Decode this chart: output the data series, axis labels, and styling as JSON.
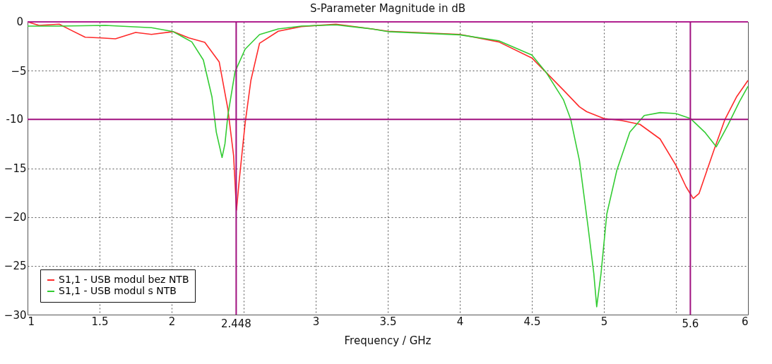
{
  "chart_data": {
    "type": "line",
    "title": "S-Parameter Magnitude in dB",
    "xlabel": "Frequency / GHz",
    "xlim": [
      1,
      6
    ],
    "ylim": [
      -30,
      0
    ],
    "xticks": [
      1,
      1.5,
      2,
      {
        "value": 2.5,
        "label": null
      },
      3,
      3.5,
      4,
      4.5,
      5,
      {
        "value": 5.5,
        "label": null
      },
      6
    ],
    "yticks": [
      {
        "value": 0,
        "label": null
      },
      -5,
      {
        "value": -10,
        "label": null
      },
      -15,
      -20,
      -25,
      -30
    ],
    "grid": true,
    "legend": "bottom left",
    "marker": "none",
    "line_style": "solid",
    "ref_lines": [
      {
        "axis": "y",
        "value": 0,
        "label": "0",
        "color": "#b0208f"
      },
      {
        "axis": "y",
        "value": -10,
        "label": "-10",
        "color": "#a0107f"
      },
      {
        "axis": "x",
        "value": 2.448,
        "label": "2.448",
        "color": "#a0107f"
      },
      {
        "axis": "x",
        "value": 5.6,
        "label": "5.6",
        "color": "#a0107f"
      }
    ],
    "series": [
      {
        "name": "S1,1 - USB modul bez NTB",
        "color": "#ff2a2a",
        "x": [
          1,
          1.08,
          1.22,
          1.3,
          1.4,
          1.51,
          1.61,
          1.75,
          1.86,
          2.01,
          2.12,
          2.23,
          2.33,
          2.39,
          2.43,
          2.45,
          2.47,
          2.51,
          2.55,
          2.61,
          2.74,
          2.9,
          3.14,
          3.39,
          3.5,
          4,
          4.27,
          4.5,
          4.6,
          4.72,
          4.83,
          4.88,
          5.0,
          5.12,
          5.25,
          5.39,
          5.5,
          5.57,
          5.62,
          5.66,
          5.76,
          5.84,
          5.92,
          6.0
        ],
        "values": [
          0,
          -0.36,
          -0.24,
          -0.84,
          -1.57,
          -1.64,
          -1.73,
          -1.08,
          -1.28,
          -1.0,
          -1.64,
          -2.1,
          -4.1,
          -8.9,
          -13.7,
          -19.3,
          -16.1,
          -10.4,
          -6.0,
          -2.2,
          -0.96,
          -0.48,
          -0.24,
          -0.72,
          -0.96,
          -1.28,
          -2.05,
          -3.7,
          -5.2,
          -7.0,
          -8.7,
          -9.2,
          -9.9,
          -10.1,
          -10.5,
          -12.0,
          -14.7,
          -16.9,
          -18.1,
          -17.6,
          -13.3,
          -10.0,
          -7.7,
          -6.0
        ]
      },
      {
        "name": "S1,1 - USB modul s NTB",
        "color": "#33cc33",
        "x": [
          1,
          1.22,
          1.54,
          1.86,
          2.01,
          2.14,
          2.22,
          2.28,
          2.31,
          2.35,
          2.37,
          2.39,
          2.44,
          2.51,
          2.61,
          2.74,
          2.9,
          3.14,
          3.39,
          3.5,
          4,
          4.27,
          4.5,
          4.6,
          4.72,
          4.77,
          4.83,
          4.89,
          4.93,
          4.95,
          4.98,
          5.02,
          5.09,
          5.18,
          5.28,
          5.39,
          5.5,
          5.6,
          5.7,
          5.78,
          5.86,
          5.94,
          6.0
        ],
        "values": [
          -0.43,
          -0.43,
          -0.36,
          -0.6,
          -1.0,
          -2.05,
          -3.9,
          -7.7,
          -11.3,
          -13.9,
          -12.5,
          -9.6,
          -5.1,
          -2.8,
          -1.3,
          -0.72,
          -0.43,
          -0.31,
          -0.72,
          -1.0,
          -1.33,
          -1.93,
          -3.4,
          -5.2,
          -8.0,
          -10.0,
          -14.2,
          -21.0,
          -25.8,
          -29.2,
          -25.8,
          -19.7,
          -15.2,
          -11.3,
          -9.6,
          -9.3,
          -9.4,
          -9.9,
          -11.3,
          -12.8,
          -10.6,
          -8.2,
          -6.6
        ]
      }
    ]
  }
}
